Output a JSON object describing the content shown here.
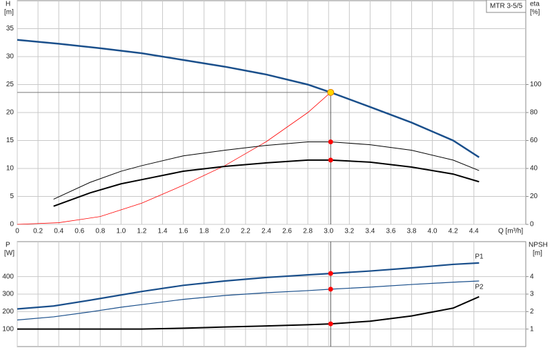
{
  "chart_data": [
    {
      "type": "line",
      "legend_text": "MTR 3-5/5",
      "y_label": [
        "H",
        "[m]"
      ],
      "y2_label": [
        "eta",
        "[%]"
      ],
      "x_label": "Q [m³/h]",
      "xlim": [
        0,
        4.9
      ],
      "xticks": [
        0,
        0.2,
        0.4,
        0.6,
        0.8,
        {
          "value": 1,
          "label": "1.0"
        },
        1.2,
        1.4,
        1.6,
        1.8,
        {
          "value": 2,
          "label": "2.0"
        },
        2.2,
        2.4,
        2.6,
        2.8,
        {
          "value": 3,
          "label": "3.0"
        },
        3.2,
        3.4,
        3.6,
        3.8,
        {
          "value": 4,
          "label": "4.0"
        },
        4.2,
        4.4
      ],
      "ylim": [
        0,
        40
      ],
      "yticks": [
        0,
        5,
        10,
        15,
        20,
        25,
        30,
        35
      ],
      "y2lim": [
        0,
        160
      ],
      "y2ticks": [
        0,
        20,
        40,
        60,
        80,
        100
      ],
      "grid": true,
      "duty_point": {
        "x": 3.02,
        "y": 23.6,
        "color": "#ffd700"
      },
      "series": [
        {
          "color": "#1a4f8b",
          "width": 2.5,
          "x": [
            0,
            0.4,
            0.8,
            1.2,
            1.6,
            2.0,
            2.4,
            2.8,
            3.02,
            3.4,
            3.8,
            4.2,
            4.45
          ],
          "values": [
            33,
            32.3,
            31.5,
            30.6,
            29.4,
            28.2,
            26.8,
            25.0,
            23.6,
            21.0,
            18.2,
            15.0,
            12.0
          ]
        },
        {
          "color": "#ff0000",
          "width": 0.8,
          "x": [
            0,
            0.4,
            0.8,
            1.2,
            1.6,
            2.0,
            2.4,
            2.8,
            3.02
          ],
          "values": [
            0,
            0.3,
            1.4,
            3.8,
            7.0,
            10.5,
            14.8,
            20.0,
            23.6
          ]
        },
        {
          "color": "#000000",
          "width": 1,
          "axis": "y2",
          "x": [
            0.35,
            0.7,
            1.0,
            1.2,
            1.6,
            2.0,
            2.4,
            2.8,
            3.02,
            3.4,
            3.8,
            4.2,
            4.45
          ],
          "values": [
            18,
            30,
            38,
            42,
            49,
            53,
            56.5,
            59,
            59,
            57,
            53,
            46,
            38.5
          ]
        },
        {
          "color": "#000000",
          "width": 2,
          "axis": "y2",
          "x": [
            0.35,
            0.7,
            1.0,
            1.2,
            1.6,
            2.0,
            2.4,
            2.8,
            3.02,
            3.4,
            3.8,
            4.2,
            4.45
          ],
          "values": [
            13,
            22.5,
            29,
            32,
            38,
            41.5,
            44,
            46,
            46,
            44.5,
            41,
            36,
            30.5
          ]
        }
      ]
    },
    {
      "type": "line",
      "y_label": [
        "P",
        "[W]"
      ],
      "y2_label": [
        "NPSH",
        "[m]"
      ],
      "xlim": [
        0,
        4.9
      ],
      "ylim": [
        0,
        600
      ],
      "yticks": [
        100,
        200,
        300,
        400
      ],
      "y2lim": [
        0,
        6
      ],
      "y2ticks": [
        1,
        2,
        3,
        4
      ],
      "grid": true,
      "series": [
        {
          "name": "P1",
          "color": "#1a4f8b",
          "width": 2.2,
          "x": [
            0,
            0.35,
            0.7,
            1.0,
            1.2,
            1.6,
            2.0,
            2.4,
            2.8,
            3.02,
            3.4,
            3.8,
            4.2,
            4.45
          ],
          "values": [
            215,
            232,
            265,
            295,
            315,
            350,
            375,
            395,
            410,
            418,
            432,
            450,
            470,
            478
          ]
        },
        {
          "name": "P2",
          "color": "#1a4f8b",
          "width": 1.2,
          "x": [
            0,
            0.35,
            0.7,
            1.0,
            1.2,
            1.6,
            2.0,
            2.4,
            2.8,
            3.02,
            3.4,
            3.8,
            4.2,
            4.45
          ],
          "values": [
            152,
            170,
            198,
            225,
            240,
            270,
            292,
            308,
            320,
            328,
            340,
            355,
            368,
            375
          ]
        },
        {
          "color": "#000000",
          "width": 2,
          "axis": "y2",
          "x": [
            0,
            1.2,
            1.6,
            2.0,
            2.4,
            2.8,
            3.02,
            3.4,
            3.8,
            4.2,
            4.45
          ],
          "values": [
            1.0,
            1.0,
            1.05,
            1.12,
            1.18,
            1.25,
            1.3,
            1.45,
            1.75,
            2.2,
            2.85
          ]
        }
      ]
    }
  ]
}
